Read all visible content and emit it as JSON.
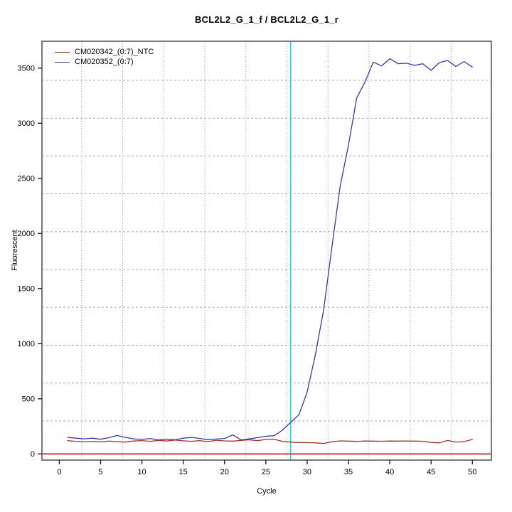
{
  "chart_data": {
    "type": "line",
    "title": "BCL2L2_G_1_f / BCL2L2_G_1_r",
    "xlabel": "Cycle",
    "ylabel": "Fluorescent",
    "xlim": [
      -2.1,
      52.3
    ],
    "ylim": [
      -56,
      3744
    ],
    "x_ticks": [
      0,
      5,
      10,
      15,
      20,
      25,
      30,
      35,
      40,
      45,
      50
    ],
    "y_ticks": [
      0,
      500,
      1000,
      1500,
      2000,
      2500,
      3000,
      3500
    ],
    "x_gridlines": [
      2.7,
      7.67,
      12.64,
      17.61,
      22.58,
      27.55,
      32.52,
      37.49,
      42.46,
      47.43
    ],
    "y_gridlines": [
      299,
      643,
      986,
      1330,
      1673,
      2016,
      2360,
      2703,
      3046,
      3390
    ],
    "grid": "dotted gray, offset from ticks",
    "legend_position": "top-left",
    "x": [
      1,
      2,
      3,
      4,
      5,
      6,
      7,
      8,
      9,
      10,
      11,
      12,
      13,
      14,
      15,
      16,
      17,
      18,
      19,
      20,
      21,
      22,
      23,
      24,
      25,
      26,
      27,
      28,
      29,
      30,
      31,
      32,
      33,
      34,
      35,
      36,
      37,
      38,
      39,
      40,
      41,
      42,
      43,
      44,
      45,
      46,
      47,
      48,
      49,
      50
    ],
    "series": [
      {
        "name": "CM020342_(0:7)_NTC",
        "color": "#993333",
        "values": [
          120,
          114,
          111,
          113,
          109,
          116,
          111,
          107,
          117,
          121,
          114,
          123,
          117,
          126,
          119,
          114,
          121,
          111,
          124,
          118,
          116,
          122,
          128,
          120,
          131,
          133,
          114,
          107,
          103,
          103,
          100,
          95,
          110,
          118,
          116,
          114,
          117,
          116,
          115,
          117,
          116,
          117,
          116,
          115,
          104,
          100,
          122,
          108,
          112,
          131
        ]
      },
      {
        "name": "CM020352_(0:7)",
        "color": "#3838A8",
        "values": [
          150,
          143,
          137,
          143,
          133,
          147,
          167,
          150,
          137,
          131,
          140,
          127,
          134,
          128,
          143,
          150,
          140,
          129,
          135,
          140,
          172,
          127,
          136,
          148,
          160,
          165,
          215,
          286,
          355,
          560,
          900,
          1310,
          1880,
          2430,
          2800,
          3230,
          3375,
          3555,
          3520,
          3585,
          3540,
          3545,
          3525,
          3540,
          3480,
          3550,
          3570,
          3515,
          3560,
          3510
        ]
      }
    ],
    "annotations": {
      "threshold_line": {
        "orientation": "horizontal",
        "value": 0,
        "color": "#CC4444"
      },
      "ct_line": {
        "orientation": "vertical",
        "value": 28,
        "color": "#00E0E8"
      }
    }
  }
}
